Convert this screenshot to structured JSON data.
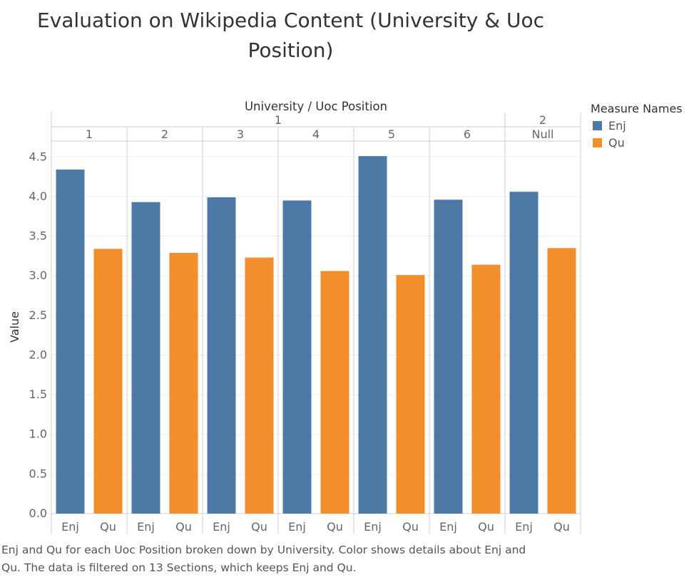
{
  "title_line1": "Evaluation on Wikipedia Content (University & Uoc",
  "title_line2": "Position)",
  "caption_line1": "Enj and Qu for each Uoc Position broken down by University.  Color shows details about Enj and",
  "caption_line2": "Qu. The data is filtered on 13 Sections, which keeps Enj and Qu.",
  "legend": {
    "title": "Measure Names",
    "items": [
      {
        "label": "Enj",
        "color": "#4e79a7"
      },
      {
        "label": "Qu",
        "color": "#f28e2b"
      }
    ]
  },
  "chart_data": {
    "type": "bar",
    "title": "Evaluation on Wikipedia Content (University & Uoc Position)",
    "column_header": "University  /  Uoc Position",
    "ylabel": "Value",
    "ylim": [
      0,
      4.7
    ],
    "yticks": [
      "0.0",
      "0.5",
      "1.0",
      "1.5",
      "2.0",
      "2.5",
      "3.0",
      "3.5",
      "4.0",
      "4.5"
    ],
    "universities": [
      {
        "label": "1",
        "positions": [
          "1",
          "2",
          "3",
          "4",
          "5",
          "6"
        ]
      },
      {
        "label": "2",
        "positions": [
          "Null"
        ]
      }
    ],
    "measures": [
      "Enj",
      "Qu"
    ],
    "colors": {
      "Enj": "#4e79a7",
      "Qu": "#f28e2b"
    },
    "groups": [
      {
        "university": "1",
        "position": "1",
        "Enj": 4.34,
        "Qu": 3.34
      },
      {
        "university": "1",
        "position": "2",
        "Enj": 3.93,
        "Qu": 3.29
      },
      {
        "university": "1",
        "position": "3",
        "Enj": 3.99,
        "Qu": 3.23
      },
      {
        "university": "1",
        "position": "4",
        "Enj": 3.95,
        "Qu": 3.06
      },
      {
        "university": "1",
        "position": "5",
        "Enj": 4.51,
        "Qu": 3.01
      },
      {
        "university": "1",
        "position": "6",
        "Enj": 3.96,
        "Qu": 3.14
      },
      {
        "university": "2",
        "position": "Null",
        "Enj": 4.06,
        "Qu": 3.35
      }
    ]
  }
}
